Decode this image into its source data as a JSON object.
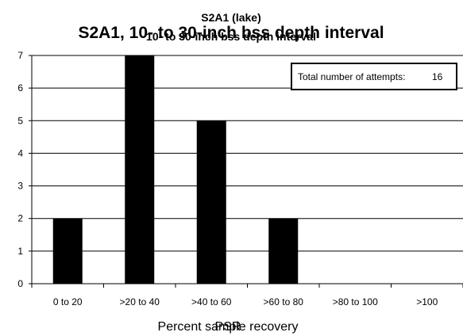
{
  "chart_data": {
    "type": "bar",
    "title": "S2A1, 10- to 30-inch bss depth interval",
    "overlay_title": "S2A1 (lake)",
    "overlay_subtitle": "10- to 30-inch bss depth interval",
    "categories": [
      "0 to 20",
      ">20 to 40",
      ">40 to 60",
      ">60 to 80",
      ">80 to 100",
      ">100"
    ],
    "values": [
      2,
      7,
      5,
      2,
      0,
      0
    ],
    "xlabel": "Percent sample recovery",
    "xlabel_overlay": "PSR",
    "ylabel": "",
    "ylim": [
      0,
      7
    ],
    "yticks": [
      "0",
      "1",
      "2",
      "3",
      "4",
      "5",
      "6",
      "7"
    ],
    "grid": true,
    "annotation": {
      "label": "Total number of attempts:",
      "value": "16"
    },
    "bar_color": "#000000"
  }
}
